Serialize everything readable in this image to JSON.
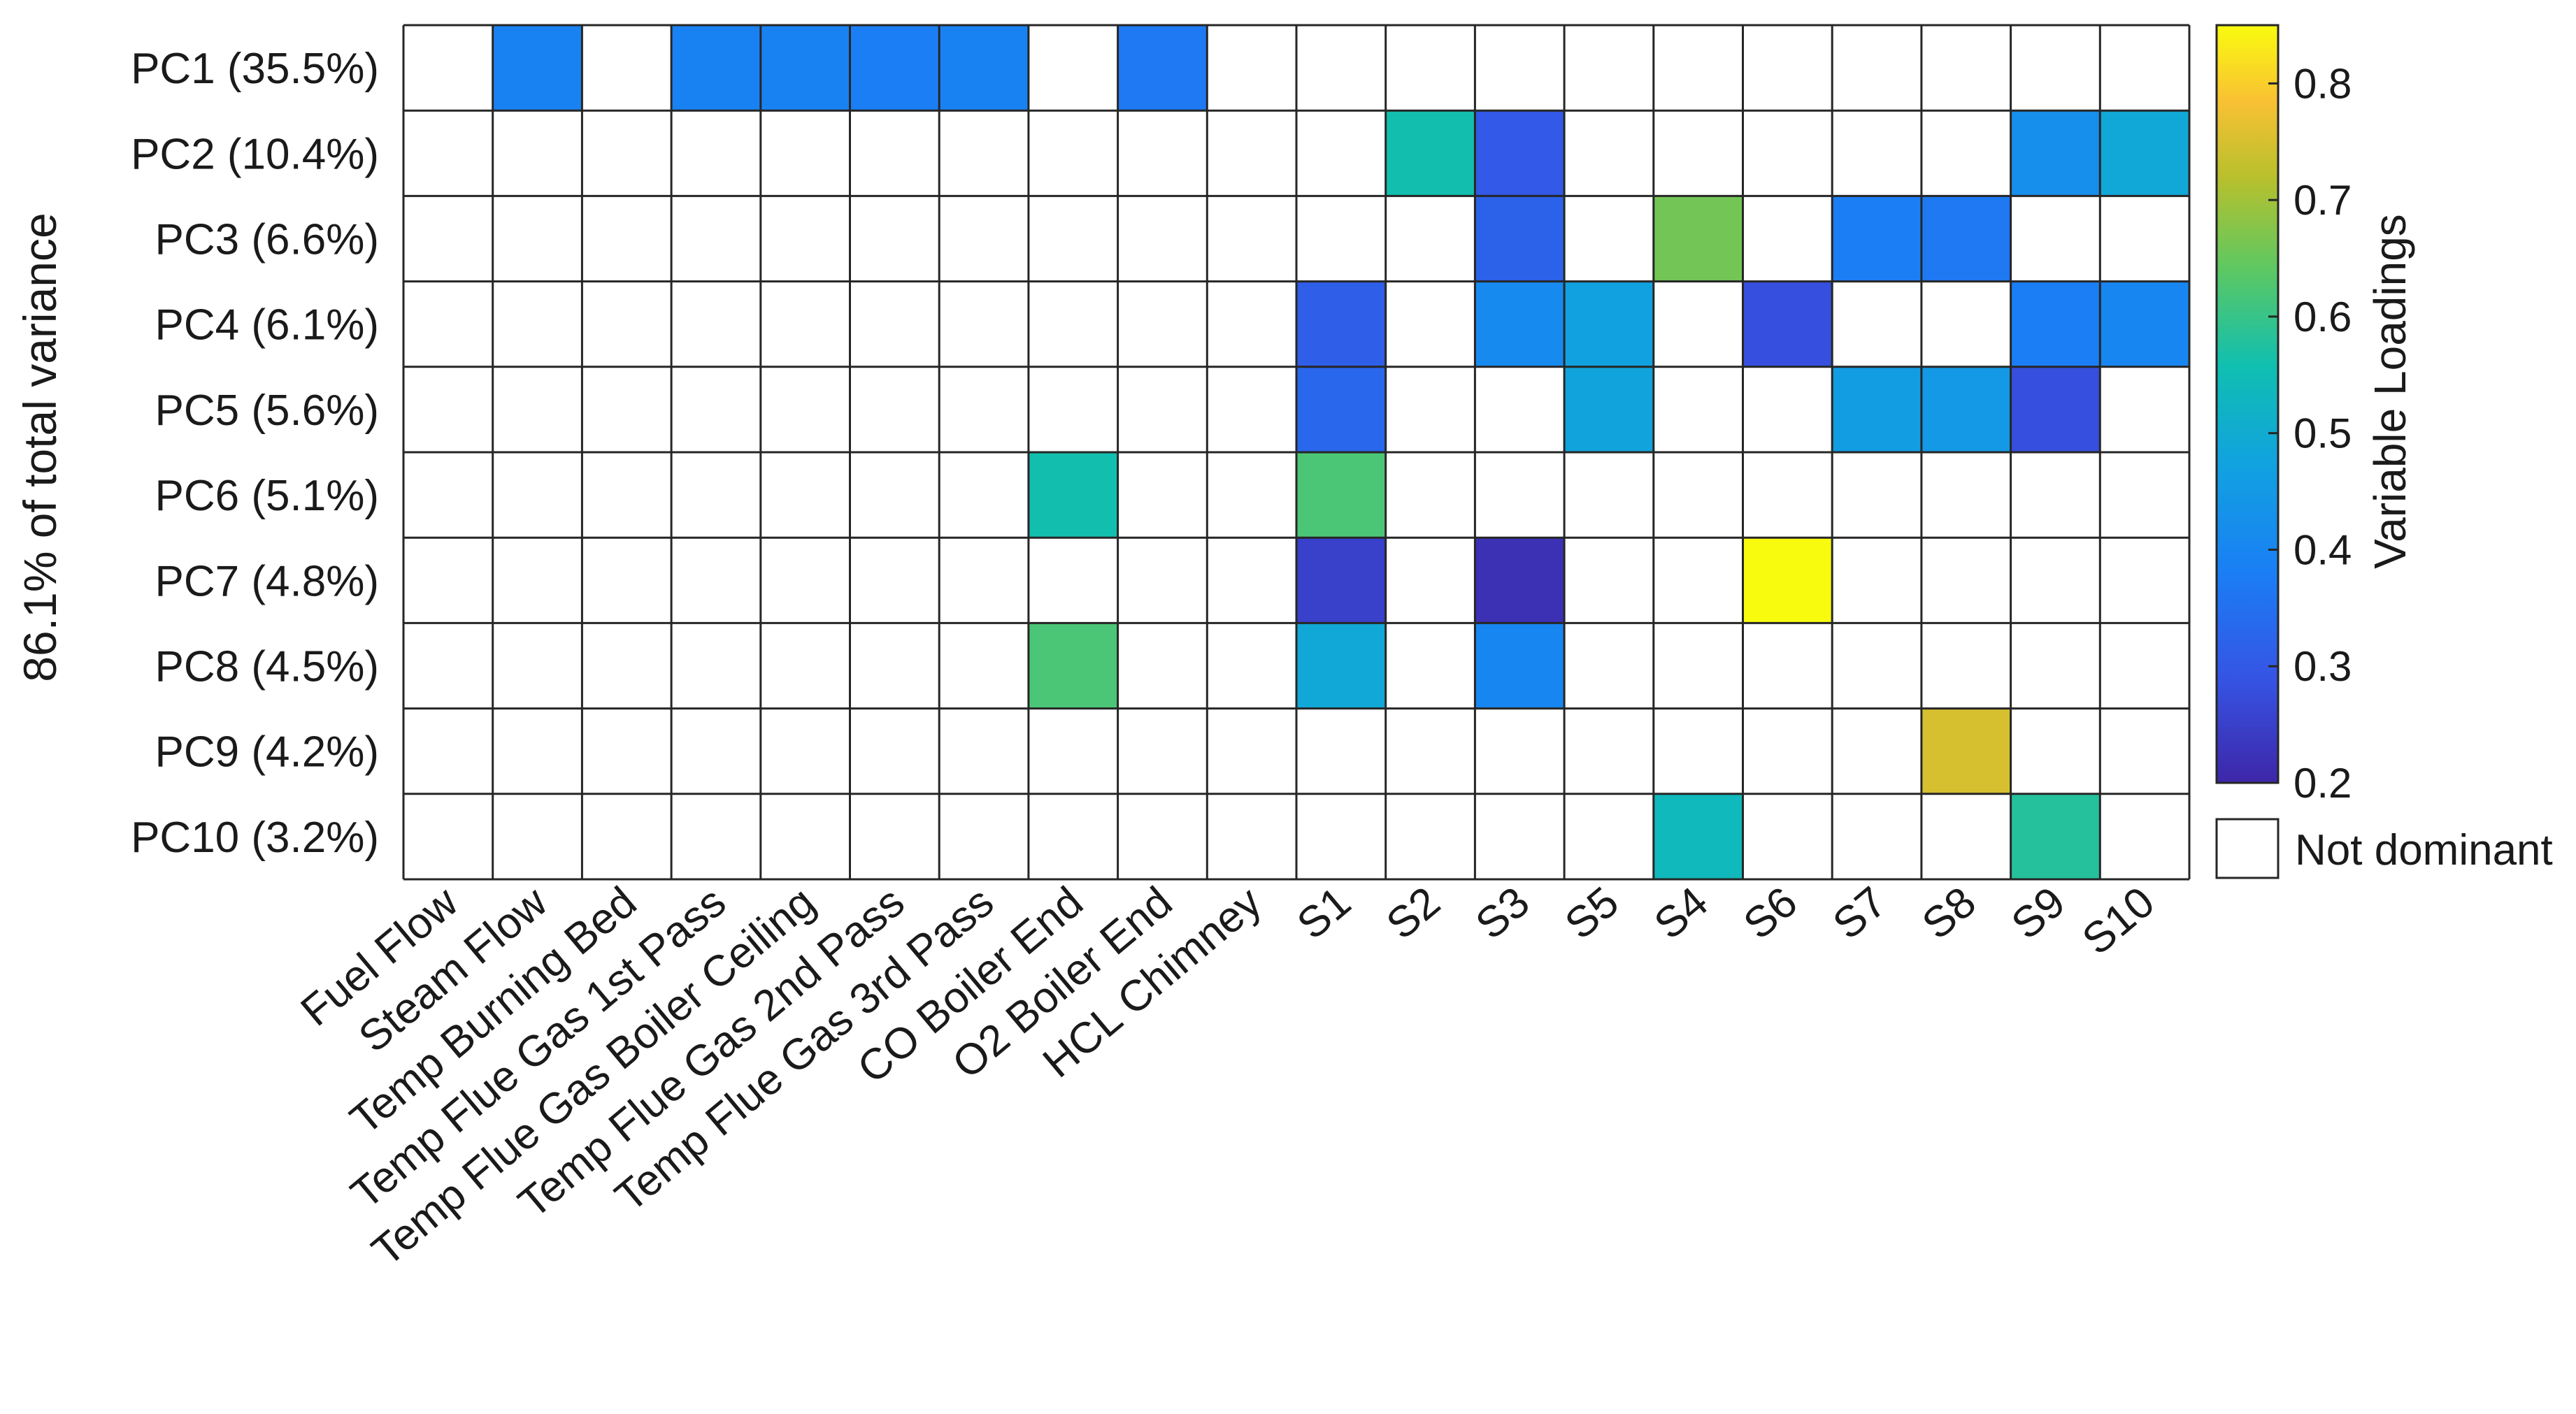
{
  "colors": {
    "not_dominant": "#ffffff",
    "grid": "#262626"
  },
  "chart_data": {
    "type": "heatmap",
    "ylabel": "86.1% of total variance",
    "colorbar_label": "Variable Loadings",
    "colorbar_range": [
      0.2,
      0.85
    ],
    "colorbar_ticks": [
      "0.2",
      "0.3",
      "0.4",
      "0.5",
      "0.6",
      "0.7",
      "0.8"
    ],
    "colormap": "parula",
    "legend_not_dominant": "Not dominant",
    "rows": [
      "PC1 (35.5%)",
      "PC2 (10.4%)",
      "PC3 (6.6%)",
      "PC4 (6.1%)",
      "PC5 (5.6%)",
      "PC6 (5.1%)",
      "PC7 (4.8%)",
      "PC8 (4.5%)",
      "PC9 (4.2%)",
      "PC10 (3.2%)"
    ],
    "columns": [
      "Fuel Flow",
      "Steam Flow",
      "Temp Burning Bed",
      "Temp Flue Gas 1st Pass",
      "Temp Flue Gas Boiler Ceiling",
      "Temp Flue Gas 2nd Pass",
      "Temp Flue Gas 3rd Pass",
      "CO Boiler End",
      "O2 Boiler End",
      "HCL Chimney",
      "S1",
      "S2",
      "S3",
      "S5",
      "S4",
      "S6",
      "S7",
      "S8",
      "S9",
      "S10"
    ],
    "values": [
      [
        null,
        0.39,
        null,
        0.39,
        0.39,
        0.38,
        0.39,
        null,
        0.37,
        null,
        null,
        null,
        null,
        null,
        null,
        null,
        null,
        null,
        null,
        null
      ],
      [
        null,
        null,
        null,
        null,
        null,
        null,
        null,
        null,
        null,
        null,
        null,
        0.56,
        0.3,
        null,
        null,
        null,
        null,
        null,
        0.42,
        0.49
      ],
      [
        null,
        null,
        null,
        null,
        null,
        null,
        null,
        null,
        null,
        null,
        null,
        null,
        0.32,
        null,
        0.66,
        null,
        0.38,
        0.37,
        null,
        null
      ],
      [
        null,
        null,
        null,
        null,
        null,
        null,
        null,
        null,
        null,
        null,
        0.31,
        null,
        0.41,
        0.47,
        null,
        0.28,
        null,
        null,
        0.38,
        0.4
      ],
      [
        null,
        null,
        null,
        null,
        null,
        null,
        null,
        null,
        null,
        null,
        0.33,
        null,
        null,
        0.48,
        null,
        null,
        0.46,
        0.45,
        0.28,
        null
      ],
      [
        null,
        null,
        null,
        null,
        null,
        null,
        null,
        0.56,
        null,
        null,
        0.62,
        null,
        null,
        null,
        null,
        null,
        null,
        null,
        null,
        null
      ],
      [
        null,
        null,
        null,
        null,
        null,
        null,
        null,
        null,
        null,
        null,
        0.25,
        null,
        0.22,
        null,
        null,
        0.85,
        null,
        null,
        null,
        null
      ],
      [
        null,
        null,
        null,
        null,
        null,
        null,
        null,
        0.62,
        null,
        null,
        0.49,
        null,
        0.4,
        null,
        null,
        null,
        null,
        null,
        null,
        null
      ],
      [
        null,
        null,
        null,
        null,
        null,
        null,
        null,
        null,
        null,
        null,
        null,
        null,
        null,
        null,
        null,
        null,
        null,
        0.75,
        null,
        null
      ],
      [
        null,
        null,
        null,
        null,
        null,
        null,
        null,
        null,
        null,
        null,
        null,
        null,
        null,
        null,
        0.54,
        null,
        null,
        null,
        0.58,
        null
      ]
    ]
  }
}
